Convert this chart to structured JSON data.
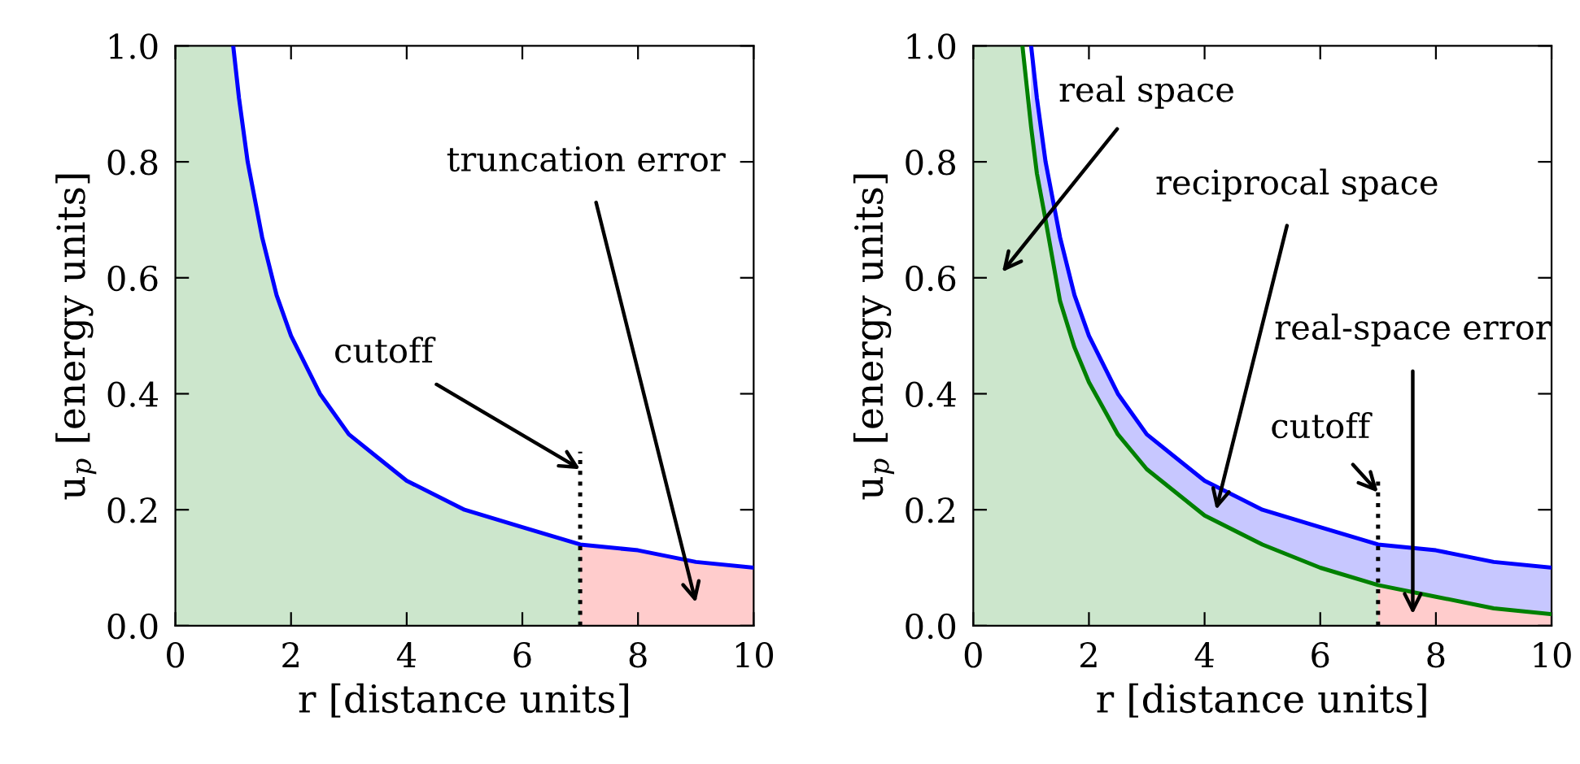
{
  "chart_data": [
    {
      "type": "line",
      "xlabel": "r [distance units]",
      "ylabel": "u$_{p}$ [energy units]",
      "xlim": [
        0,
        10
      ],
      "ylim": [
        0,
        1
      ],
      "xticks": [
        0,
        2,
        4,
        6,
        8,
        10
      ],
      "yticks": [
        {
          "value": 0,
          "label": "0.0"
        },
        {
          "value": 0.2,
          "label": "0.2"
        },
        {
          "value": 0.4,
          "label": "0.4"
        },
        {
          "value": 0.6,
          "label": "0.6"
        },
        {
          "value": 0.8,
          "label": "0.8"
        },
        {
          "value": 1,
          "label": "1.0"
        }
      ],
      "series": [
        {
          "type": "area",
          "color": "#008000",
          "x": [
            0,
            1,
            1.1,
            1.25,
            1.5,
            1.75,
            2,
            2.5,
            3,
            3.5,
            4,
            5,
            6,
            7
          ],
          "values": [
            1.0,
            1.0,
            0.91,
            0.8,
            0.67,
            0.57,
            0.5,
            0.4,
            0.33,
            0.29,
            0.25,
            0.2,
            0.17,
            0.14
          ]
        },
        {
          "type": "area",
          "color": "#ff0000",
          "x": [
            7,
            8,
            9,
            10
          ],
          "values": [
            0.14,
            0.13,
            0.11,
            0.1
          ]
        },
        {
          "color": "#0000ff",
          "x": [
            1,
            1.1,
            1.25,
            1.5,
            1.75,
            2,
            2.5,
            3,
            3.5,
            4,
            5,
            6,
            7,
            8,
            9,
            10
          ],
          "values": [
            1.0,
            0.91,
            0.8,
            0.67,
            0.57,
            0.5,
            0.4,
            0.33,
            0.29,
            0.25,
            0.2,
            0.17,
            0.14,
            0.13,
            0.11,
            0.1
          ]
        },
        {
          "color": "#000000",
          "line_style": "dotted",
          "x": [
            7,
            7
          ],
          "values": [
            0,
            0.3
          ]
        }
      ],
      "annotations": [
        {
          "text": "cutoff",
          "x": 7,
          "y": 0.27
        },
        "truncation error"
      ]
    },
    {
      "type": "line",
      "xlabel": "r [distance units]",
      "ylabel": "u$_{p}$ [energy units]",
      "xlim": [
        0,
        10
      ],
      "ylim": [
        0,
        1
      ],
      "xticks": [
        0,
        2,
        4,
        6,
        8,
        10
      ],
      "yticks": [
        {
          "value": 0,
          "label": "0.0"
        },
        {
          "value": 0.2,
          "label": "0.2"
        },
        {
          "value": 0.4,
          "label": "0.4"
        },
        {
          "value": 0.6,
          "label": "0.6"
        },
        {
          "value": 0.8,
          "label": "0.8"
        },
        {
          "value": 1,
          "label": "1.0"
        }
      ],
      "series": [
        {
          "type": "area",
          "color": "#008000",
          "x": [
            0,
            0.85,
            1,
            1.1,
            1.25,
            1.5,
            1.75,
            2,
            2.5,
            3,
            3.5,
            4,
            5,
            6,
            7
          ],
          "values": [
            1.0,
            1.0,
            0.86,
            0.78,
            0.7,
            0.56,
            0.48,
            0.42,
            0.33,
            0.27,
            0.23,
            0.19,
            0.14,
            0.1,
            0.07
          ]
        },
        {
          "type": "area",
          "color": "#ff0000",
          "x": [
            7,
            8,
            9,
            10
          ],
          "values": [
            0.07,
            0.05,
            0.03,
            0.02
          ]
        },
        {
          "color": "#0000ff",
          "x": [
            1,
            1.1,
            1.25,
            1.5,
            1.75,
            2,
            2.5,
            3,
            3.5,
            4,
            5,
            6,
            7,
            8,
            9,
            10
          ],
          "values": [
            1.0,
            0.91,
            0.8,
            0.67,
            0.57,
            0.5,
            0.4,
            0.33,
            0.29,
            0.25,
            0.2,
            0.17,
            0.14,
            0.13,
            0.11,
            0.1
          ],
          "lower": [
            0.86,
            0.78,
            0.7,
            0.56,
            0.48,
            0.42,
            0.33,
            0.27,
            0.23,
            0.19,
            0.14,
            0.1,
            0.07,
            0.05,
            0.03,
            0.02
          ],
          "upper": [
            1.0,
            0.91,
            0.8,
            0.67,
            0.57,
            0.5,
            0.4,
            0.33,
            0.29,
            0.25,
            0.2,
            0.17,
            0.14,
            0.13,
            0.11,
            0.1
          ]
        },
        {
          "color": "#008000",
          "x": [
            0.85,
            1,
            1.1,
            1.25,
            1.5,
            1.75,
            2,
            2.5,
            3,
            3.5,
            4,
            5,
            6,
            7,
            8,
            9,
            10
          ],
          "values": [
            1.0,
            0.86,
            0.78,
            0.7,
            0.56,
            0.48,
            0.42,
            0.33,
            0.27,
            0.23,
            0.19,
            0.14,
            0.1,
            0.07,
            0.05,
            0.03,
            0.02
          ]
        },
        {
          "color": "#000000",
          "line_style": "dotted",
          "x": [
            7,
            7
          ],
          "values": [
            0,
            0.25
          ]
        }
      ],
      "annotations": [
        "real space",
        "reciprocal space",
        "real-space error",
        {
          "text": "cutoff",
          "x": 7,
          "y": 0.23
        }
      ]
    }
  ]
}
